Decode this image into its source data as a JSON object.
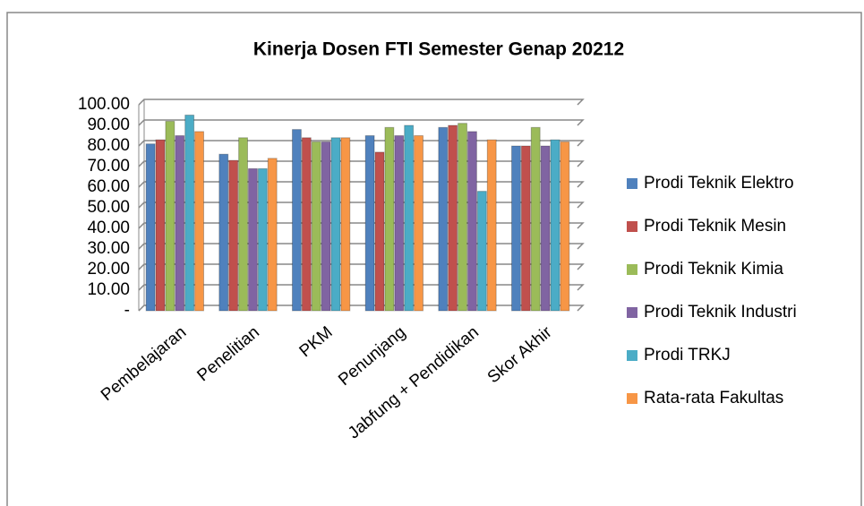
{
  "chart_data": {
    "type": "bar",
    "title": "Kinerja Dosen FTI Semester Genap 20212",
    "categories": [
      "Pembelajaran",
      "Penelitian",
      "PKM",
      "Penunjang",
      "Jabfung + Pendidikan",
      "Skor Akhir"
    ],
    "series": [
      {
        "name": "Prodi Teknik Elektro",
        "color": "#4f81bd",
        "values": [
          81,
          76,
          88,
          85,
          89,
          80
        ]
      },
      {
        "name": "Prodi Teknik Mesin",
        "color": "#c0504d",
        "values": [
          83,
          73,
          84,
          77,
          90,
          80
        ]
      },
      {
        "name": "Prodi Teknik Kimia",
        "color": "#9bbb59",
        "values": [
          92,
          84,
          82,
          89,
          91,
          89
        ]
      },
      {
        "name": "Prodi Teknik Industri",
        "color": "#8064a2",
        "values": [
          85,
          69,
          82,
          85,
          87,
          80
        ]
      },
      {
        "name": "Prodi TRKJ",
        "color": "#4bacc6",
        "values": [
          95,
          69,
          84,
          90,
          58,
          83
        ]
      },
      {
        "name": "Rata-rata Fakultas",
        "color": "#f79646",
        "values": [
          87,
          74,
          84,
          85,
          83,
          82
        ]
      }
    ],
    "ylim": [
      0,
      100
    ],
    "yticks": [
      {
        "value": 0,
        "label": "-"
      },
      {
        "value": 10,
        "label": "10.00"
      },
      {
        "value": 20,
        "label": "20.00"
      },
      {
        "value": 30,
        "label": "30.00"
      },
      {
        "value": 40,
        "label": "40.00"
      },
      {
        "value": 50,
        "label": "50.00"
      },
      {
        "value": 60,
        "label": "60.00"
      },
      {
        "value": 70,
        "label": "70.00"
      },
      {
        "value": 80,
        "label": "80.00"
      },
      {
        "value": 90,
        "label": "90.00"
      },
      {
        "value": 100,
        "label": "100.00"
      }
    ],
    "grid": true,
    "legend": "right"
  }
}
